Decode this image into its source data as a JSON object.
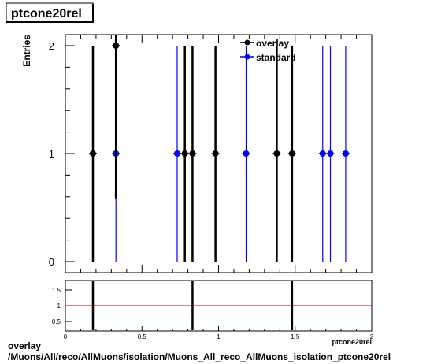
{
  "title_box": "ptcone20rel",
  "caption": {
    "line1": "overlay",
    "line2": "/Muons/All/reco/AllMuons/isolation/Muons_All_reco_AllMuons_isolation_ptcone20rel"
  },
  "colors": {
    "overlay": "#000000",
    "standard": "#0000ff",
    "ratio_line": "#cc0000"
  },
  "chart_data": [
    {
      "type": "scatter",
      "ylabel": "Entries",
      "xlim": [
        0,
        2
      ],
      "ylim": [
        0,
        2.1
      ],
      "yticks": [
        "0",
        "1",
        "2"
      ],
      "legend_position": "top-right",
      "series": [
        {
          "name": "overlay",
          "x": [
            0.18,
            0.33,
            0.78,
            0.83,
            0.98,
            1.38,
            1.48
          ],
          "y": [
            1,
            2,
            1,
            1,
            1,
            1,
            1
          ],
          "yerr": [
            1,
            1.414,
            1,
            1,
            1,
            1,
            1
          ]
        },
        {
          "name": "standard",
          "x": [
            0.33,
            0.73,
            1.18,
            1.68,
            1.73,
            1.83
          ],
          "y": [
            1,
            1,
            1,
            1,
            1,
            1
          ],
          "yerr": [
            1,
            1,
            1,
            1,
            1,
            1
          ]
        }
      ]
    },
    {
      "type": "line",
      "xlabel": "ptcone20rel",
      "xlim": [
        0,
        2
      ],
      "ylim": [
        0.3,
        1.75
      ],
      "xticks": [
        "0",
        "0.5",
        "1",
        "1.5",
        "2"
      ],
      "yticks": [
        "0.5",
        "1",
        "1.5"
      ],
      "reference_line": 1,
      "series": [
        {
          "x": [
            0.18,
            0.83,
            1.48
          ],
          "y": [
            1,
            1,
            1
          ]
        }
      ]
    }
  ]
}
